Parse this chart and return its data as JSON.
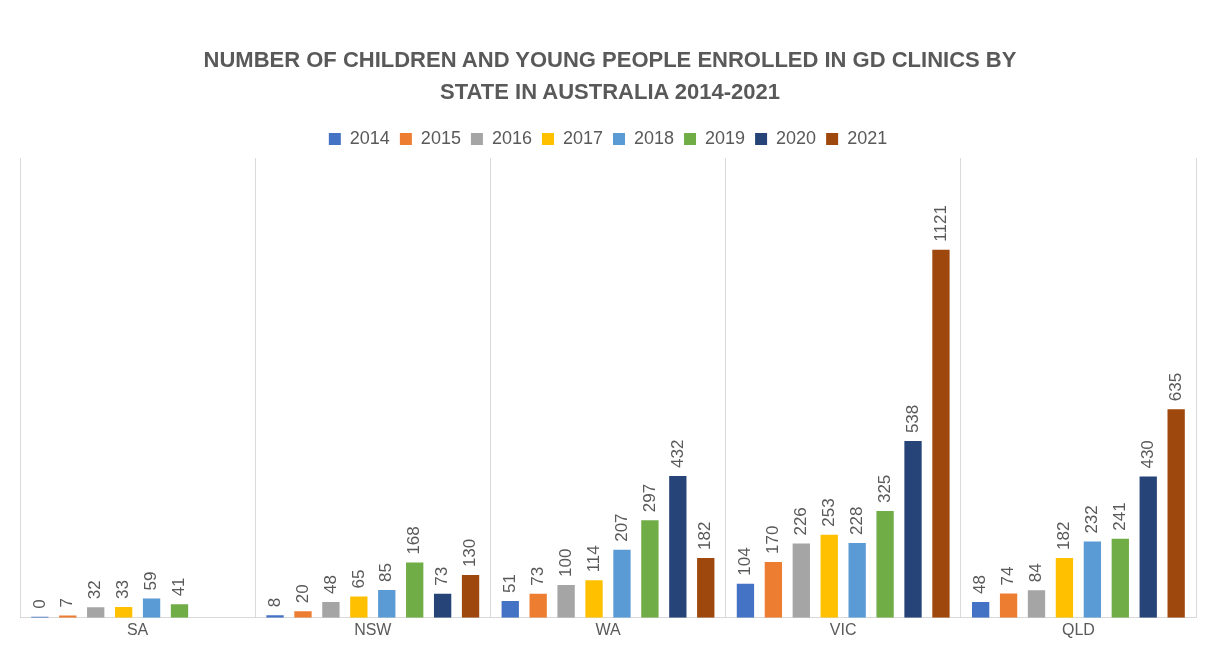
{
  "chart_data": {
    "type": "bar",
    "title": "NUMBER OF CHILDREN AND YOUNG PEOPLE ENROLLED IN GD CLINICS BY STATE IN AUSTRALIA 2014-2021",
    "categories": [
      "SA",
      "NSW",
      "WA",
      "VIC",
      "QLD"
    ],
    "series": [
      {
        "name": "2014",
        "color": "#4472c4",
        "values": [
          0,
          8,
          51,
          104,
          48
        ]
      },
      {
        "name": "2015",
        "color": "#ed7d31",
        "values": [
          7,
          20,
          73,
          170,
          74
        ]
      },
      {
        "name": "2016",
        "color": "#a5a5a5",
        "values": [
          32,
          48,
          100,
          226,
          84
        ]
      },
      {
        "name": "2017",
        "color": "#ffc000",
        "values": [
          33,
          65,
          114,
          253,
          182
        ]
      },
      {
        "name": "2018",
        "color": "#5b9bd5",
        "values": [
          59,
          85,
          207,
          228,
          232
        ]
      },
      {
        "name": "2019",
        "color": "#70ad47",
        "values": [
          41,
          168,
          297,
          325,
          241
        ]
      },
      {
        "name": "2020",
        "color": "#264478",
        "values": [
          null,
          73,
          432,
          538,
          430
        ]
      },
      {
        "name": "2021",
        "color": "#9e480e",
        "values": [
          null,
          130,
          182,
          1121,
          635
        ]
      }
    ],
    "data_labels": true,
    "grid": "x",
    "legend": "top",
    "tick_labels": "x"
  }
}
